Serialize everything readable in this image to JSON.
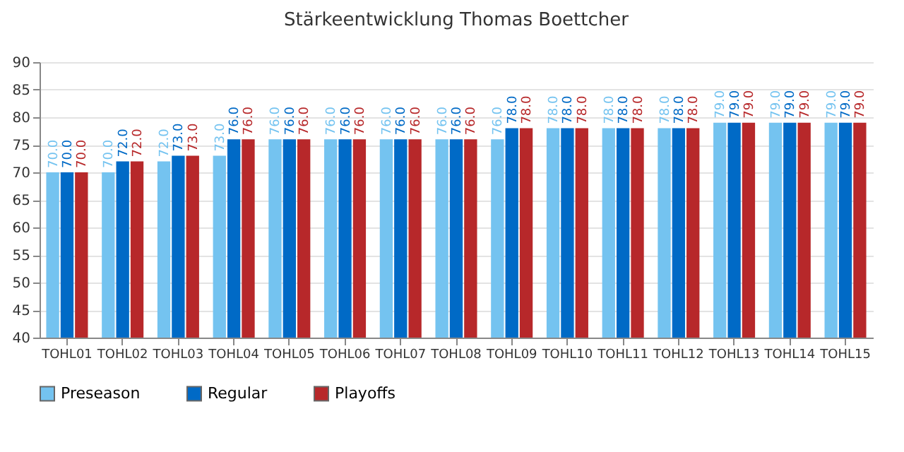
{
  "chart_data": {
    "type": "bar",
    "title": "Stärkeentwicklung Thomas Boettcher",
    "categories": [
      "TOHL01",
      "TOHL02",
      "TOHL03",
      "TOHL04",
      "TOHL05",
      "TOHL06",
      "TOHL07",
      "TOHL08",
      "TOHL09",
      "TOHL10",
      "TOHL11",
      "TOHL12",
      "TOHL13",
      "TOHL14",
      "TOHL15"
    ],
    "series": [
      {
        "name": "Preseason",
        "color": "#74c3f0",
        "values": [
          70,
          70,
          72,
          73,
          76,
          76,
          76,
          76,
          76,
          78,
          78,
          78,
          79,
          79,
          79
        ],
        "value_labels": [
          "70.0",
          "70.0",
          "72.0",
          "73.0",
          "76.0",
          "76.0",
          "76.0",
          "76.0",
          "76.0",
          "78.0",
          "78.0",
          "78.0",
          "79.0",
          "79.0",
          "79.0"
        ]
      },
      {
        "name": "Regular",
        "color": "#006ac6",
        "values": [
          70,
          72,
          73,
          76,
          76,
          76,
          76,
          76,
          78,
          78,
          78,
          78,
          79,
          79,
          79
        ],
        "value_labels": [
          "70.0",
          "72.0",
          "73.0",
          "76.0",
          "76.0",
          "76.0",
          "76.0",
          "76.0",
          "78.0",
          "78.0",
          "78.0",
          "78.0",
          "79.0",
          "79.0",
          "79.0"
        ]
      },
      {
        "name": "Playoffs",
        "color": "#b7282a",
        "values": [
          70,
          72,
          73,
          76,
          76,
          76,
          76,
          76,
          78,
          78,
          78,
          78,
          79,
          79,
          79
        ],
        "value_labels": [
          "70.0",
          "72.0",
          "73.0",
          "76.0",
          "76.0",
          "76.0",
          "76.0",
          "76.0",
          "78.0",
          "78.0",
          "78.0",
          "78.0",
          "79.0",
          "79.0",
          "79.0"
        ]
      }
    ],
    "ylim": [
      40,
      90
    ],
    "yticks": [
      40,
      45,
      50,
      55,
      60,
      65,
      70,
      75,
      80,
      85,
      90
    ],
    "grid": "y",
    "legend": "bottom"
  }
}
